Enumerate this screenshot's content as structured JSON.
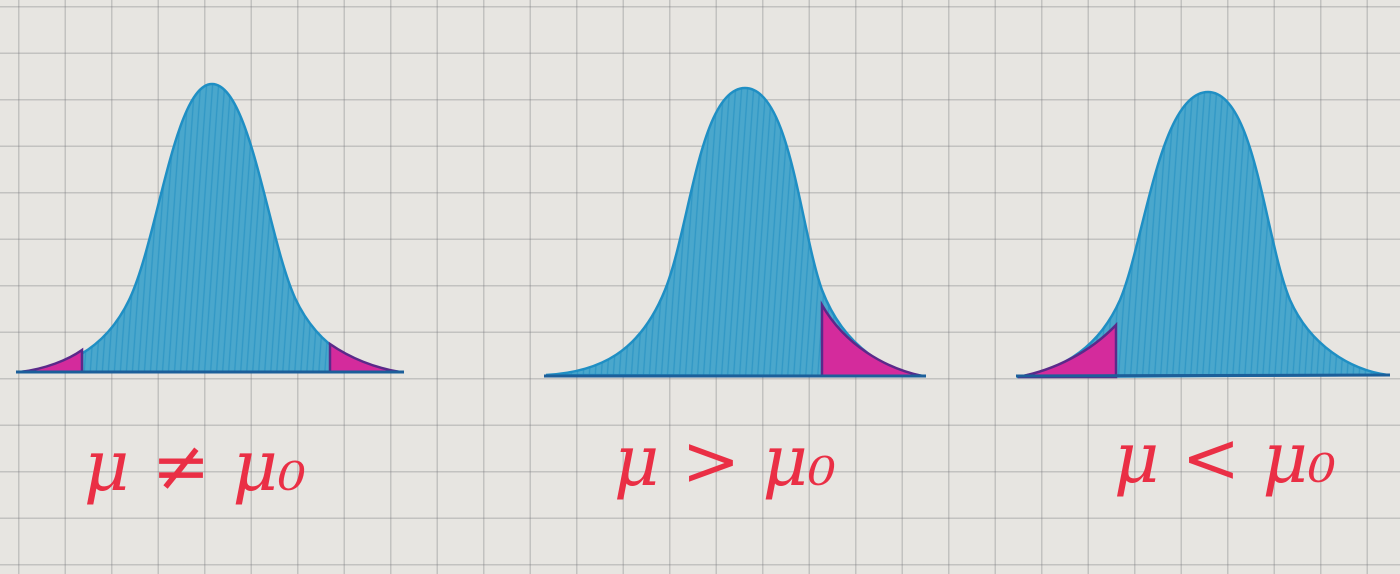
{
  "diagrams": [
    {
      "name": "two-tailed",
      "caption": "μ ≠ μ₀",
      "shaded_tails": [
        "left",
        "right"
      ]
    },
    {
      "name": "right-tailed",
      "caption": "μ > μ₀",
      "shaded_tails": [
        "right"
      ]
    },
    {
      "name": "left-tailed",
      "caption": "μ < μ₀",
      "shaded_tails": [
        "left"
      ]
    }
  ],
  "colors": {
    "curve_fill": "#4aa7cc",
    "curve_stroke": "#1f8fc4",
    "baseline": "#1c5f9a",
    "tail_fill": "#d42b9c",
    "tail_stroke": "#5a2a8a",
    "caption": "#ea2f45"
  }
}
